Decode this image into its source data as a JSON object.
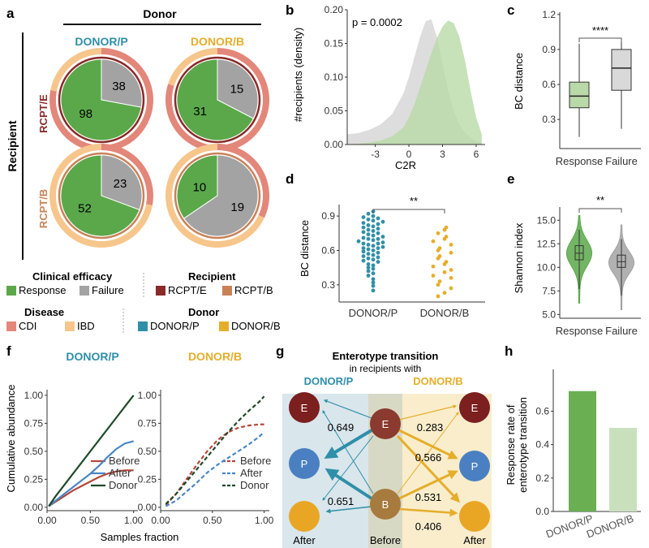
{
  "colors": {
    "response": "#5aa84a",
    "failure": "#a3a3a3",
    "rcpt_e": "#8b2a2a",
    "rcpt_b": "#c98258",
    "cdi": "#e3877a",
    "ibd": "#f6c68c",
    "donor_p": "#2f8fa8",
    "donor_b": "#e5ae2a",
    "light_green": "#b9d9a8",
    "light_grey": "#d9d9d9"
  },
  "panel_a": {
    "label": "a",
    "donor_title": "Donor",
    "recipient_title": "Recipient",
    "col_labels": [
      "DONOR/P",
      "DONOR/B"
    ],
    "row_labels": [
      "RCPT/E",
      "RCPT/B"
    ],
    "pies": [
      {
        "name": "pie-rcpte-donorp",
        "response": 98,
        "failure": 38
      },
      {
        "name": "pie-rcpte-donorb",
        "response": 31,
        "failure": 15
      },
      {
        "name": "pie-rcptb-donorp",
        "response": 52,
        "failure": 23
      },
      {
        "name": "pie-rcptb-donorb",
        "response": 10,
        "failure": 19
      }
    ],
    "legend": {
      "clinical_title": "Clinical efficacy",
      "response": "Response",
      "failure": "Failure",
      "recipient_title": "Recipient",
      "rcpt_e": "RCPT/E",
      "rcpt_b": "RCPT/B",
      "disease_title": "Disease",
      "cdi": "CDI",
      "ibd": "IBD",
      "donor_title": "Donor",
      "donor_p": "DONOR/P",
      "donor_b": "DONOR/B"
    }
  },
  "chart_data": [
    {
      "panel": "b",
      "type": "area",
      "title": "",
      "annotation": "p = 0.0002",
      "xlabel": "C2R",
      "ylabel": "#recipients (density)",
      "xlim": [
        -5.5,
        6.8
      ],
      "ylim": [
        0,
        0.2
      ],
      "xticks": [
        -3,
        0,
        3,
        6
      ],
      "yticks": [
        0.0,
        0.05,
        0.1,
        0.15,
        0.2
      ],
      "ytick_labels": [
        "0.00",
        "0.05",
        "0.10",
        "0.15",
        "0.20"
      ],
      "series": [
        {
          "name": "Failure",
          "color": "#d9d9d9",
          "x": [
            -5.5,
            -4.5,
            -3.5,
            -2.5,
            -1.5,
            -0.5,
            0.0,
            0.5,
            1.0,
            1.5,
            2.0,
            2.5,
            3.0,
            3.5,
            4.0,
            4.5,
            5.0,
            5.5,
            6.0,
            6.5
          ],
          "y": [
            0.015,
            0.017,
            0.022,
            0.03,
            0.045,
            0.075,
            0.1,
            0.13,
            0.16,
            0.183,
            0.186,
            0.16,
            0.12,
            0.08,
            0.05,
            0.03,
            0.018,
            0.01,
            0.005,
            0.002
          ]
        },
        {
          "name": "Response",
          "color": "#b9d9a8",
          "x": [
            -5.5,
            -4.5,
            -3.5,
            -2.5,
            -1.5,
            -0.5,
            0.0,
            0.5,
            1.0,
            1.5,
            2.0,
            2.5,
            3.0,
            3.5,
            4.0,
            4.5,
            5.0,
            5.5,
            6.0,
            6.5
          ],
          "y": [
            0.0,
            0.001,
            0.003,
            0.006,
            0.012,
            0.025,
            0.04,
            0.06,
            0.085,
            0.11,
            0.135,
            0.158,
            0.175,
            0.184,
            0.18,
            0.16,
            0.125,
            0.08,
            0.04,
            0.015
          ]
        }
      ]
    },
    {
      "panel": "c",
      "type": "box",
      "ylabel": "BC distance",
      "annotation": "****",
      "ylim": [
        0.05,
        1.22
      ],
      "yticks": [
        0.3,
        0.6,
        0.9,
        1.2
      ],
      "categories": [
        "Response",
        "Failure"
      ],
      "boxes": [
        {
          "name": "Response",
          "color": "#b9d9a8",
          "min": 0.15,
          "q1": 0.4,
          "median": 0.5,
          "q3": 0.62,
          "max": 0.95
        },
        {
          "name": "Failure",
          "color": "#d9d9d9",
          "min": 0.22,
          "q1": 0.55,
          "median": 0.74,
          "q3": 0.9,
          "max": 0.99
        }
      ]
    },
    {
      "panel": "d",
      "type": "scatter",
      "ylabel": "BC distance",
      "annotation": "**",
      "ylim": [
        0.15,
        1.0
      ],
      "yticks": [
        0.3,
        0.6,
        0.9
      ],
      "categories": [
        "DONOR/P",
        "DONOR/B"
      ],
      "series": [
        {
          "name": "DONOR/P",
          "color": "#2f8fa8",
          "values": [
            0.25,
            0.29,
            0.32,
            0.35,
            0.38,
            0.4,
            0.42,
            0.44,
            0.45,
            0.47,
            0.48,
            0.5,
            0.51,
            0.52,
            0.53,
            0.54,
            0.55,
            0.56,
            0.57,
            0.58,
            0.59,
            0.6,
            0.61,
            0.62,
            0.62,
            0.63,
            0.64,
            0.65,
            0.66,
            0.66,
            0.67,
            0.68,
            0.69,
            0.7,
            0.7,
            0.71,
            0.72,
            0.73,
            0.74,
            0.75,
            0.76,
            0.77,
            0.78,
            0.79,
            0.8,
            0.81,
            0.82,
            0.83,
            0.84,
            0.85,
            0.86,
            0.87,
            0.88,
            0.89,
            0.9,
            0.92,
            0.94
          ]
        },
        {
          "name": "DONOR/B",
          "color": "#e5ae2a",
          "values": [
            0.2,
            0.23,
            0.27,
            0.3,
            0.33,
            0.36,
            0.38,
            0.41,
            0.43,
            0.46,
            0.48,
            0.5,
            0.53,
            0.55,
            0.58,
            0.6,
            0.62,
            0.65,
            0.68,
            0.7,
            0.72,
            0.75,
            0.78,
            0.8
          ]
        }
      ]
    },
    {
      "panel": "e",
      "type": "violin",
      "ylabel": "Shannon index",
      "annotation": "**",
      "ylim": [
        4.6,
        16.4
      ],
      "yticks": [
        5.0,
        7.5,
        10.0,
        12.5,
        15.0
      ],
      "ytick_labels": [
        "5.0",
        "7.5",
        "10.0",
        "12.5",
        "15.0"
      ],
      "categories": [
        "Response",
        "Failure"
      ],
      "violins": [
        {
          "name": "Response",
          "color": "#5aa84a",
          "min": 6.2,
          "q1": 10.8,
          "median": 11.5,
          "q3": 12.3,
          "max": 15.5,
          "mode": 11.5
        },
        {
          "name": "Failure",
          "color": "#a3a3a3",
          "min": 5.5,
          "q1": 10.0,
          "median": 10.6,
          "q3": 11.3,
          "max": 14.5,
          "mode": 10.5
        }
      ]
    },
    {
      "panel": "f",
      "type": "line",
      "xlabel": "Samples fraction",
      "ylabel": "Cumulative abundance",
      "xlim": [
        0,
        1.05
      ],
      "ylim": [
        -0.03,
        1.05
      ],
      "xticks": [
        0.0,
        0.5,
        1.0
      ],
      "xtick_labels": [
        "0.00",
        "0.50",
        "1.00"
      ],
      "yticks": [
        0.0,
        0.25,
        0.5,
        0.75,
        1.0
      ],
      "ytick_labels": [
        "0.00",
        "0.25",
        "0.50",
        "0.75",
        "1.00"
      ],
      "subplots": [
        {
          "title": "DONOR/P",
          "title_color": "#2f8fa8",
          "style": "solid",
          "series": [
            {
              "name": "Before",
              "color": "#b5483a",
              "x": [
                0.02,
                0.1,
                0.2,
                0.3,
                0.4,
                0.5,
                0.6,
                0.7,
                0.8,
                0.9,
                1.0
              ],
              "y": [
                0.01,
                0.05,
                0.1,
                0.15,
                0.19,
                0.23,
                0.27,
                0.3,
                0.32,
                0.33,
                0.33
              ]
            },
            {
              "name": "After",
              "color": "#4a86c8",
              "x": [
                0.02,
                0.1,
                0.2,
                0.3,
                0.4,
                0.5,
                0.6,
                0.7,
                0.8,
                0.9,
                1.0
              ],
              "y": [
                0.01,
                0.06,
                0.12,
                0.18,
                0.24,
                0.3,
                0.37,
                0.45,
                0.52,
                0.57,
                0.59
              ]
            },
            {
              "name": "Donor",
              "color": "#1f4a2a",
              "x": [
                0.02,
                0.1,
                0.2,
                0.3,
                0.4,
                0.5,
                0.6,
                0.7,
                0.8,
                0.9,
                1.0
              ],
              "y": [
                0.01,
                0.1,
                0.2,
                0.3,
                0.4,
                0.5,
                0.6,
                0.7,
                0.8,
                0.9,
                1.0
              ]
            }
          ]
        },
        {
          "title": "DONOR/B",
          "title_color": "#e5ae2a",
          "style": "dashed",
          "series": [
            {
              "name": "Before",
              "color": "#b5483a",
              "x": [
                0.05,
                0.15,
                0.25,
                0.35,
                0.45,
                0.55,
                0.65,
                0.75,
                0.85,
                0.95,
                1.0
              ],
              "y": [
                0.02,
                0.12,
                0.25,
                0.38,
                0.5,
                0.6,
                0.67,
                0.71,
                0.73,
                0.74,
                0.74
              ]
            },
            {
              "name": "After",
              "color": "#4a86c8",
              "x": [
                0.05,
                0.15,
                0.25,
                0.35,
                0.45,
                0.55,
                0.65,
                0.75,
                0.85,
                0.95,
                1.0
              ],
              "y": [
                0.01,
                0.06,
                0.14,
                0.22,
                0.31,
                0.38,
                0.44,
                0.5,
                0.56,
                0.63,
                0.67
              ]
            },
            {
              "name": "Donor",
              "color": "#1f4a2a",
              "x": [
                0.05,
                0.15,
                0.25,
                0.35,
                0.45,
                0.55,
                0.65,
                0.75,
                0.85,
                0.95,
                1.0
              ],
              "y": [
                0.03,
                0.12,
                0.23,
                0.34,
                0.45,
                0.56,
                0.67,
                0.77,
                0.86,
                0.94,
                0.99
              ]
            }
          ]
        }
      ]
    },
    {
      "panel": "h",
      "type": "bar",
      "ylabel": "Response rate of enterotype transition",
      "ylim": [
        0,
        0.85
      ],
      "yticks": [
        0.0,
        0.2,
        0.4,
        0.6
      ],
      "ytick_labels": [
        "0.0",
        "0.2",
        "0.4",
        "0.6"
      ],
      "categories": [
        "DONOR/P",
        "DONOR/B"
      ],
      "values": [
        0.72,
        0.5
      ],
      "bar_colors": [
        "#6aaf52",
        "#c9e0bd"
      ]
    }
  ],
  "panel_g": {
    "label": "g",
    "title": "Enterotype transition",
    "subtitle": "in recipients with",
    "donor_p": "DONOR/P",
    "donor_b": "DONOR/B",
    "nodes": {
      "e": "E",
      "p": "P",
      "b": "B"
    },
    "after_left": "After",
    "before": "Before",
    "after_right": "After",
    "values": {
      "pe_e": "0.649",
      "pb_b": "0.651",
      "be_e": "0.283",
      "be_p": "0.566",
      "bb_p": "0.531",
      "bb_b": "0.406"
    }
  },
  "panel_labels": {
    "b": "b",
    "c": "c",
    "d": "d",
    "e": "e",
    "f": "f",
    "h": "h"
  }
}
